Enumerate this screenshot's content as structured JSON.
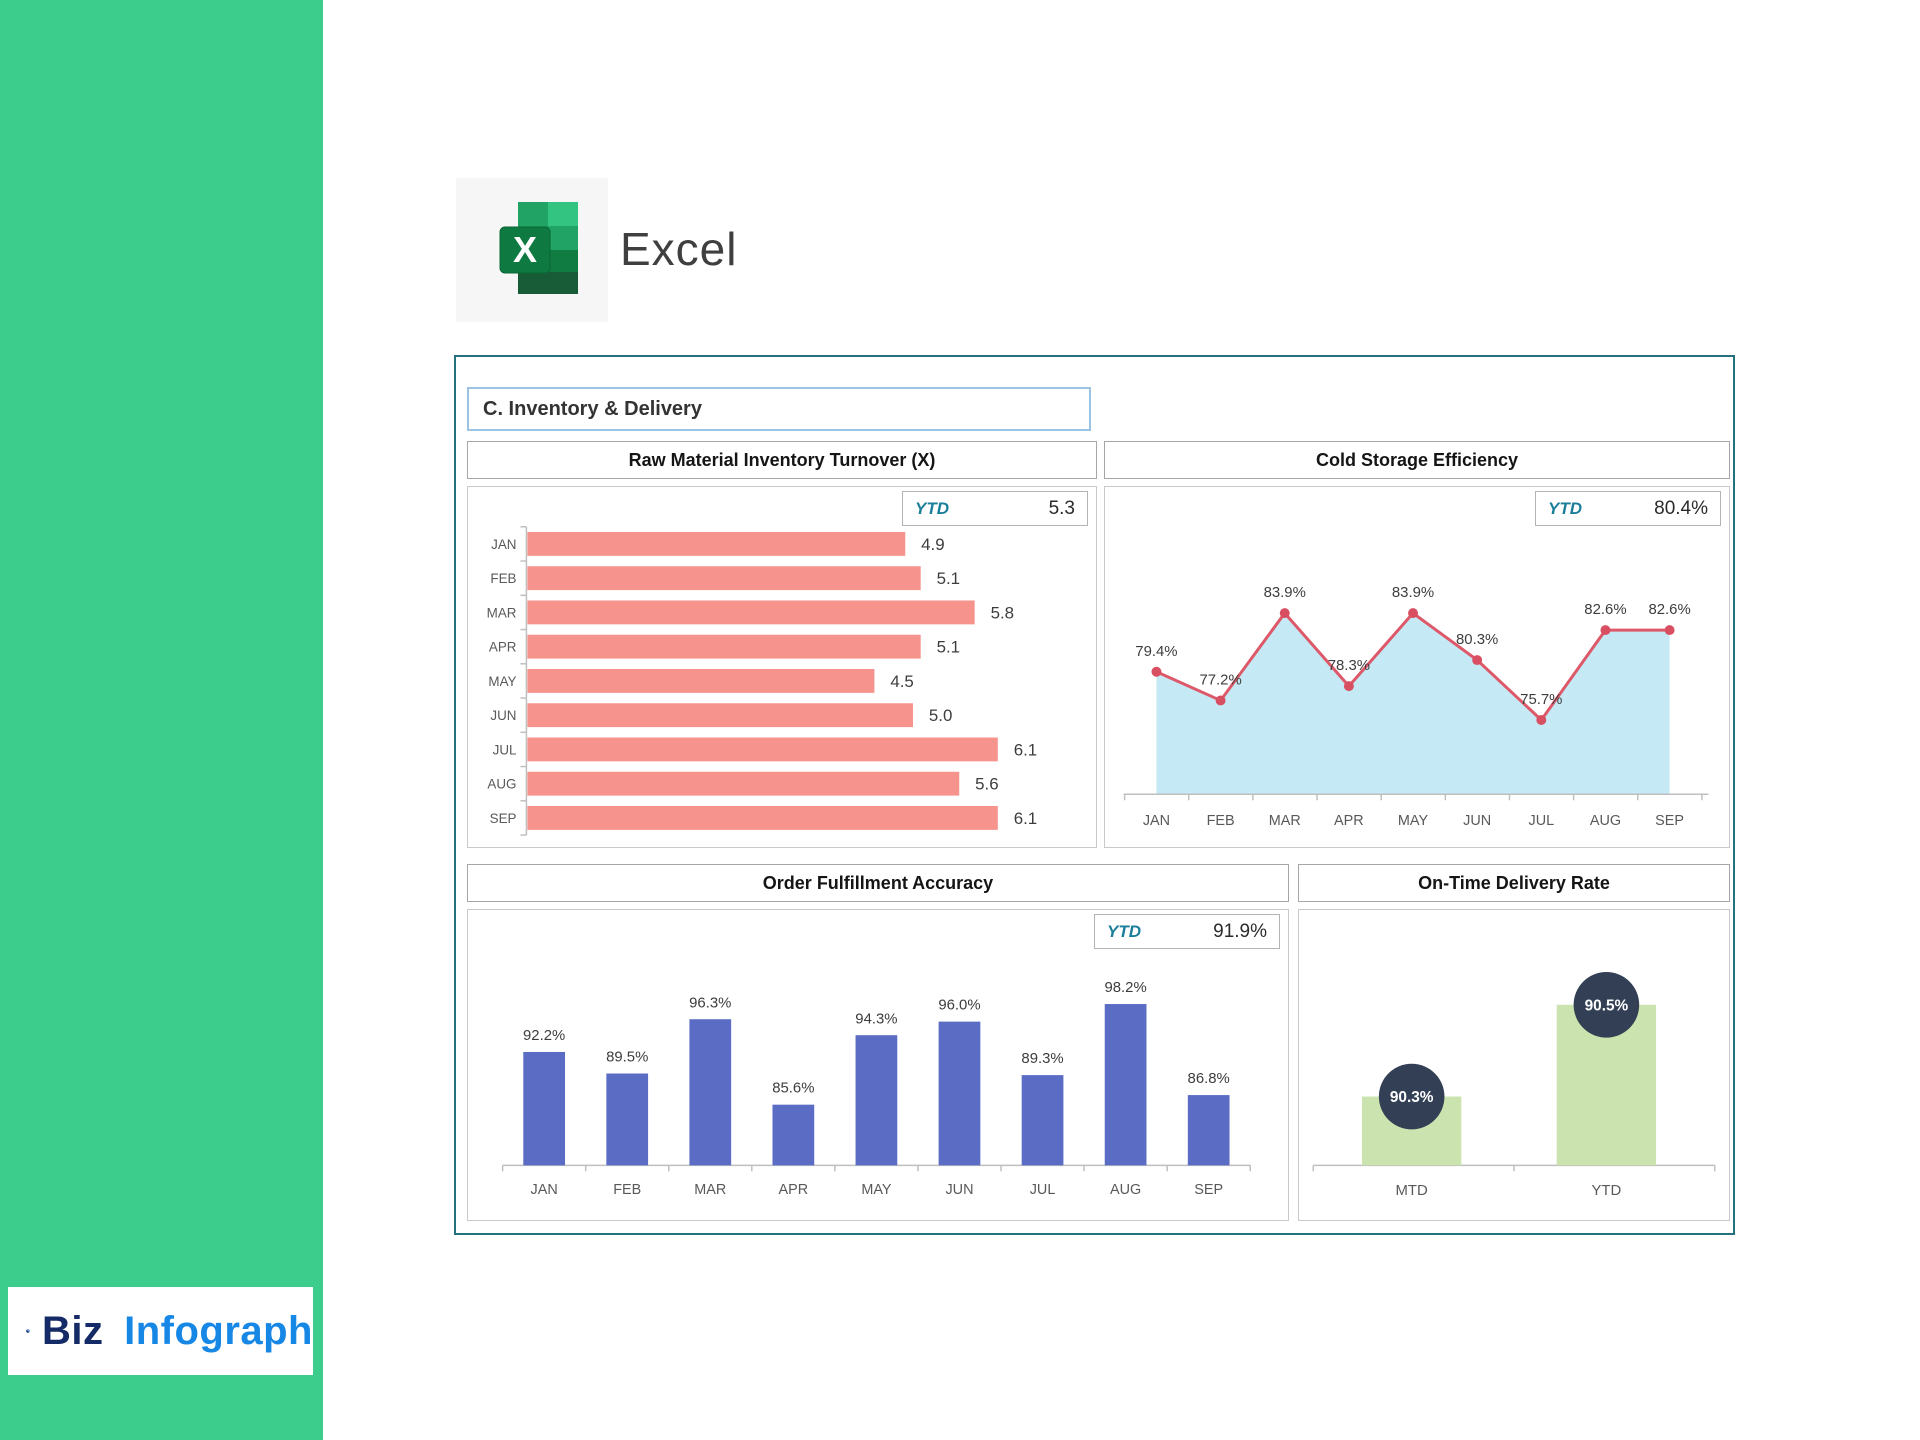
{
  "sidebar": {
    "color": "#3CCD8D"
  },
  "brand": {
    "app_name": "Excel"
  },
  "dashboard": {
    "section_title": "C. Inventory & Delivery",
    "ytd_label": "YTD",
    "border_color": "#26717E"
  },
  "footer_logo": {
    "text_primary": "Biz",
    "text_secondary": "Infograph"
  },
  "chart_data": [
    {
      "id": "raw-material-inventory-turnover",
      "type": "bar",
      "orientation": "horizontal",
      "title": "Raw Material Inventory Turnover (X)",
      "categories": [
        "JAN",
        "FEB",
        "MAR",
        "APR",
        "MAY",
        "JUN",
        "JUL",
        "AUG",
        "SEP"
      ],
      "values": [
        4.9,
        5.1,
        5.8,
        5.1,
        4.5,
        5.0,
        6.1,
        5.6,
        6.1
      ],
      "labels": [
        "4.9",
        "5.1",
        "5.8",
        "5.1",
        "4.5",
        "5.0",
        "6.1",
        "5.6",
        "6.1"
      ],
      "ytd": "5.3",
      "xlim": [
        0,
        7.3
      ],
      "bar_color": "#F7938D",
      "axis_color": "#BFBFBF",
      "grid": false,
      "legend": "none"
    },
    {
      "id": "cold-storage-efficiency",
      "type": "area",
      "title": "Cold Storage Efficiency",
      "categories": [
        "JAN",
        "FEB",
        "MAR",
        "APR",
        "MAY",
        "JUN",
        "JUL",
        "AUG",
        "SEP"
      ],
      "values": [
        79.4,
        77.2,
        83.9,
        78.3,
        83.9,
        80.3,
        75.7,
        82.6,
        82.6
      ],
      "labels": [
        "79.4%",
        "77.2%",
        "83.9%",
        "78.3%",
        "83.9%",
        "80.3%",
        "75.7%",
        "82.6%",
        "82.6%"
      ],
      "ytd": "80.4%",
      "ylim": [
        70,
        89
      ],
      "fill_color": "#C5E9F5",
      "line_color": "#DD5868",
      "marker_color": "#D94F62",
      "axis_color": "#BFBFBF",
      "grid": false,
      "legend": "none"
    },
    {
      "id": "order-fulfillment-accuracy",
      "type": "bar",
      "orientation": "vertical",
      "title": "Order Fulfillment Accuracy",
      "categories": [
        "JAN",
        "FEB",
        "MAR",
        "APR",
        "MAY",
        "JUN",
        "JUL",
        "AUG",
        "SEP"
      ],
      "values": [
        92.2,
        89.5,
        96.3,
        85.6,
        94.3,
        96.0,
        89.3,
        98.2,
        86.8
      ],
      "labels": [
        "92.2%",
        "89.5%",
        "96.3%",
        "85.6%",
        "94.3%",
        "96.0%",
        "89.3%",
        "98.2%",
        "86.8%"
      ],
      "ytd": "91.9%",
      "ylim": [
        78,
        105
      ],
      "bar_color": "#5B6CC5",
      "axis_color": "#BFBFBF",
      "grid": false,
      "legend": "none"
    },
    {
      "id": "on-time-delivery-rate",
      "type": "bar",
      "orientation": "vertical",
      "style": "circle-label",
      "title": "On-Time Delivery Rate",
      "categories": [
        "MTD",
        "YTD"
      ],
      "values": [
        90.3,
        90.5
      ],
      "labels": [
        "90.3%",
        "90.5%"
      ],
      "ylim": [
        90.15,
        90.62
      ],
      "bar_color": "#CBE3AF",
      "circle_color": "#333F54",
      "circle_text_color": "#FFFFFF",
      "axis_color": "#BFBFBF",
      "grid": false,
      "legend": "none"
    }
  ]
}
